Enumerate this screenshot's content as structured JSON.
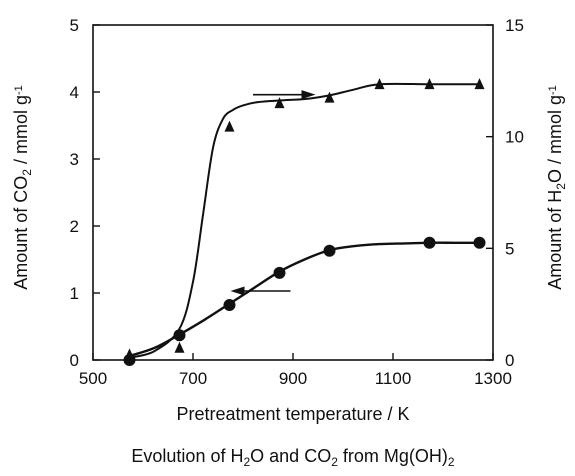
{
  "chart_data": {
    "type": "line",
    "caption": {
      "parts": [
        {
          "t": "Evolution of H"
        },
        {
          "t": "2",
          "sub": true
        },
        {
          "t": "O and CO"
        },
        {
          "t": "2",
          "sub": true
        },
        {
          "t": " from Mg(OH)"
        },
        {
          "t": "2",
          "sub": true
        }
      ]
    },
    "xlabel": "Pretreatment temperature / K",
    "ylabel_left": {
      "parts": [
        {
          "t": "Amount of CO"
        },
        {
          "t": "2",
          "sub": true
        },
        {
          "t": " / mmol g"
        },
        {
          "t": "-1",
          "sup": true
        }
      ]
    },
    "ylabel_right": {
      "parts": [
        {
          "t": "Amount of H"
        },
        {
          "t": "2",
          "sub": true
        },
        {
          "t": "O / mmol g"
        },
        {
          "t": "-1",
          "sup": true
        }
      ]
    },
    "xlim": [
      500,
      1300
    ],
    "ylim_left": [
      0,
      5
    ],
    "ylim_right": [
      0,
      15
    ],
    "x_ticks": [
      500,
      700,
      900,
      1100,
      1300
    ],
    "y_left_ticks": [
      0,
      1,
      2,
      3,
      4,
      5
    ],
    "y_right_ticks": [
      0,
      5,
      10,
      15
    ],
    "grid": false,
    "series": [
      {
        "marker": "circle",
        "axis": "left",
        "x": [
          573,
          673,
          773,
          873,
          973,
          1173,
          1273
        ],
        "y": [
          0.0,
          0.37,
          0.82,
          1.3,
          1.63,
          1.75,
          1.75
        ],
        "curve_x": [
          573,
          623,
          673,
          723,
          773,
          823,
          873,
          923,
          973,
          1023,
          1073,
          1123,
          1173,
          1223,
          1273
        ],
        "curve_y": [
          0.06,
          0.18,
          0.38,
          0.6,
          0.84,
          1.08,
          1.32,
          1.5,
          1.64,
          1.7,
          1.73,
          1.74,
          1.75,
          1.75,
          1.75
        ]
      },
      {
        "marker": "triangle",
        "axis": "right",
        "x": [
          573,
          673,
          773,
          873,
          973,
          1073,
          1173,
          1273
        ],
        "y": [
          0.25,
          0.55,
          10.45,
          11.5,
          11.75,
          12.35,
          12.35,
          12.35
        ],
        "curve_x": [
          573,
          623,
          673,
          700,
          720,
          740,
          760,
          780,
          800,
          830,
          873,
          930,
          973,
          1020,
          1073,
          1173,
          1273
        ],
        "curve_y": [
          0.1,
          0.4,
          1.4,
          3.5,
          6.5,
          9.5,
          10.8,
          11.2,
          11.4,
          11.55,
          11.62,
          11.7,
          11.85,
          12.1,
          12.35,
          12.35,
          12.35
        ]
      }
    ],
    "arrows": [
      {
        "direction": "right",
        "axis_of_series": "right",
        "x_from": 820,
        "x_to": 945,
        "y": 3.96
      },
      {
        "direction": "left",
        "axis_of_series": "left",
        "x_from": 895,
        "x_to": 775,
        "y": 1.03
      }
    ]
  }
}
